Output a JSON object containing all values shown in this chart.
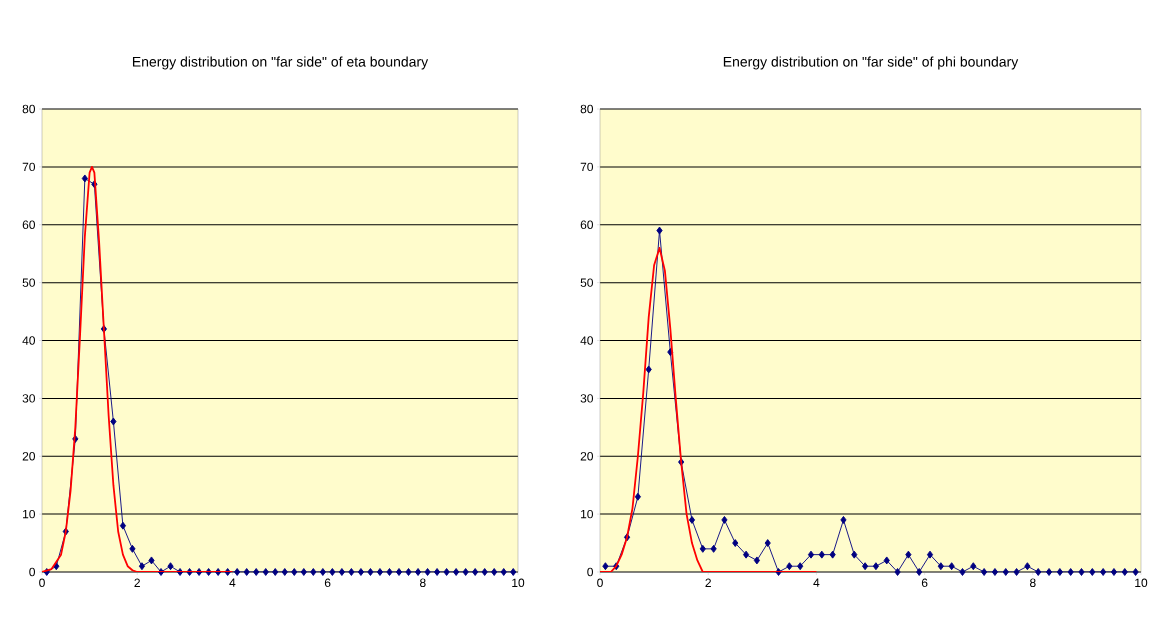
{
  "chart_data": [
    {
      "type": "line",
      "title": "Energy distribution on \"far side\" of eta boundary",
      "xlim": [
        0,
        10
      ],
      "ylim": [
        0,
        80
      ],
      "xticks": [
        0,
        2,
        4,
        6,
        8,
        10
      ],
      "yticks": [
        0,
        10,
        20,
        30,
        40,
        50,
        60,
        70,
        80
      ],
      "grid": "y",
      "series": [
        {
          "color": "#000080",
          "marker": "diamond",
          "x": [
            0.1,
            0.3,
            0.5,
            0.7,
            0.9,
            1.1,
            1.3,
            1.5,
            1.7,
            1.9,
            2.1,
            2.3,
            2.5,
            2.7,
            2.9,
            3.1,
            3.3,
            3.5,
            3.7,
            3.9,
            4.1,
            4.3,
            4.5,
            4.7,
            4.9,
            5.1,
            5.3,
            5.5,
            5.7,
            5.9,
            6.1,
            6.3,
            6.5,
            6.7,
            6.9,
            7.1,
            7.3,
            7.5,
            7.7,
            7.9,
            8.1,
            8.3,
            8.5,
            8.7,
            8.9,
            9.1,
            9.3,
            9.5,
            9.7,
            9.9
          ],
          "values": [
            0,
            1,
            7,
            23,
            68,
            67,
            42,
            26,
            8,
            4,
            1,
            2,
            0,
            1,
            0,
            0,
            0,
            0,
            0,
            0,
            0,
            0,
            0,
            0,
            0,
            0,
            0,
            0,
            0,
            0,
            0,
            0,
            0,
            0,
            0,
            0,
            0,
            0,
            0,
            0,
            0,
            0,
            0,
            0,
            0,
            0,
            0,
            0,
            0,
            0
          ]
        },
        {
          "color": "#ff0000",
          "marker": "none",
          "x": [
            0,
            0.2,
            0.4,
            0.5,
            0.6,
            0.7,
            0.8,
            0.9,
            1.0,
            1.05,
            1.1,
            1.2,
            1.3,
            1.4,
            1.5,
            1.6,
            1.7,
            1.8,
            1.9,
            2.0,
            2.5,
            3,
            3.5,
            4
          ],
          "values": [
            0,
            0.5,
            3,
            7,
            14,
            25,
            41,
            58,
            69,
            70,
            69,
            57,
            42,
            27,
            15,
            7,
            3,
            1,
            0.3,
            0,
            0,
            0,
            0,
            0
          ]
        }
      ]
    },
    {
      "type": "line",
      "title": "Energy distribution on \"far side\" of phi boundary",
      "xlim": [
        0,
        10
      ],
      "ylim": [
        0,
        80
      ],
      "xticks": [
        0,
        2,
        4,
        6,
        8,
        10
      ],
      "yticks": [
        0,
        10,
        20,
        30,
        40,
        50,
        60,
        70,
        80
      ],
      "grid": "y",
      "series": [
        {
          "color": "#000080",
          "marker": "diamond",
          "x": [
            0.1,
            0.3,
            0.5,
            0.7,
            0.9,
            1.1,
            1.3,
            1.5,
            1.7,
            1.9,
            2.1,
            2.3,
            2.5,
            2.7,
            2.9,
            3.1,
            3.3,
            3.5,
            3.7,
            3.9,
            4.1,
            4.3,
            4.5,
            4.7,
            4.9,
            5.1,
            5.3,
            5.5,
            5.7,
            5.9,
            6.1,
            6.3,
            6.5,
            6.7,
            6.9,
            7.1,
            7.3,
            7.5,
            7.7,
            7.9,
            8.1,
            8.3,
            8.5,
            8.7,
            8.9,
            9.1,
            9.3,
            9.5,
            9.7,
            9.9
          ],
          "values": [
            1,
            1,
            6,
            13,
            35,
            59,
            38,
            19,
            9,
            4,
            4,
            9,
            5,
            3,
            2,
            5,
            0,
            1,
            1,
            3,
            3,
            3,
            9,
            3,
            1,
            1,
            2,
            0,
            3,
            0,
            3,
            1,
            1,
            0,
            1,
            0,
            0,
            0,
            0,
            1,
            0,
            0,
            0,
            0,
            0,
            0,
            0,
            0,
            0,
            0
          ]
        },
        {
          "color": "#ff0000",
          "marker": "none",
          "x": [
            0,
            0.2,
            0.3,
            0.4,
            0.5,
            0.6,
            0.7,
            0.8,
            0.9,
            1.0,
            1.1,
            1.2,
            1.3,
            1.4,
            1.5,
            1.6,
            1.7,
            1.8,
            1.9,
            2.0,
            3,
            4
          ],
          "values": [
            0,
            0,
            1,
            3,
            6,
            11,
            20,
            31,
            44,
            53,
            56,
            52,
            42,
            30,
            19,
            10,
            5,
            2,
            0,
            0,
            0,
            0
          ]
        }
      ]
    }
  ]
}
